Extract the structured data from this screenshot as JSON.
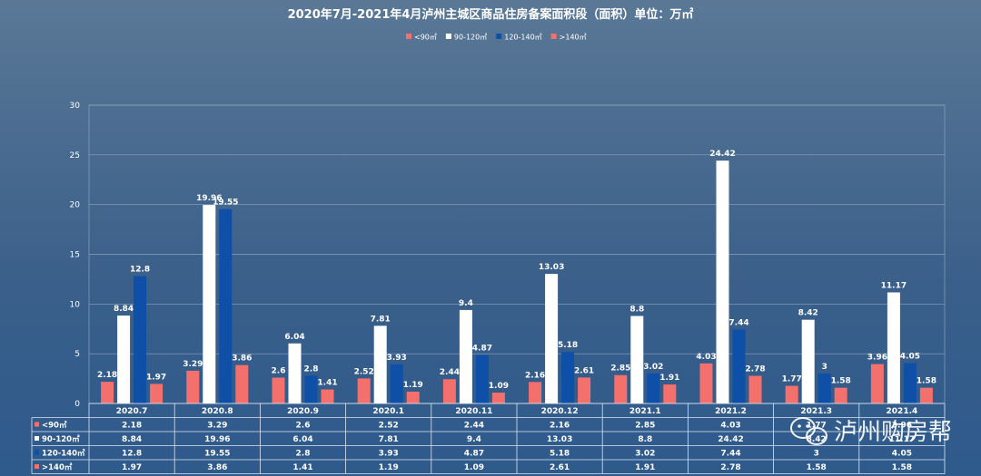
{
  "chart_data": {
    "type": "bar",
    "title": "2020年7月-2021年4月泸州主城区商品住房备案面积段（面积）单位：万㎡",
    "categories": [
      "2020.7",
      "2020.8",
      "2020.9",
      "2020.1",
      "2020.11",
      "2020.12",
      "2021.1",
      "2021.2",
      "2021.3",
      "2021.4"
    ],
    "ylim": [
      0,
      30
    ],
    "yticks": [
      0,
      5,
      10,
      15,
      20,
      25,
      30
    ],
    "grid": true,
    "legend_position": "top",
    "series": [
      {
        "name": "<90㎡",
        "color": "#f4706c",
        "values": [
          2.18,
          3.29,
          2.6,
          2.52,
          2.44,
          2.16,
          2.85,
          4.03,
          1.77,
          3.96
        ]
      },
      {
        "name": "90-120㎡",
        "color": "#ffffff",
        "values": [
          8.84,
          19.96,
          6.04,
          7.81,
          9.4,
          13.03,
          8.8,
          24.42,
          8.42,
          11.17
        ]
      },
      {
        "name": "120-140㎡",
        "color": "#0e4fa8",
        "values": [
          12.8,
          19.55,
          2.8,
          3.93,
          4.87,
          5.18,
          3.02,
          7.44,
          3,
          4.05
        ]
      },
      {
        "name": ">140㎡",
        "color": "#f4706c",
        "values": [
          1.97,
          3.86,
          1.41,
          1.19,
          1.09,
          2.61,
          1.91,
          2.78,
          1.58,
          1.58
        ]
      }
    ]
  },
  "watermark": {
    "text": "泸州购房帮",
    "icon": "wechat-icon"
  }
}
